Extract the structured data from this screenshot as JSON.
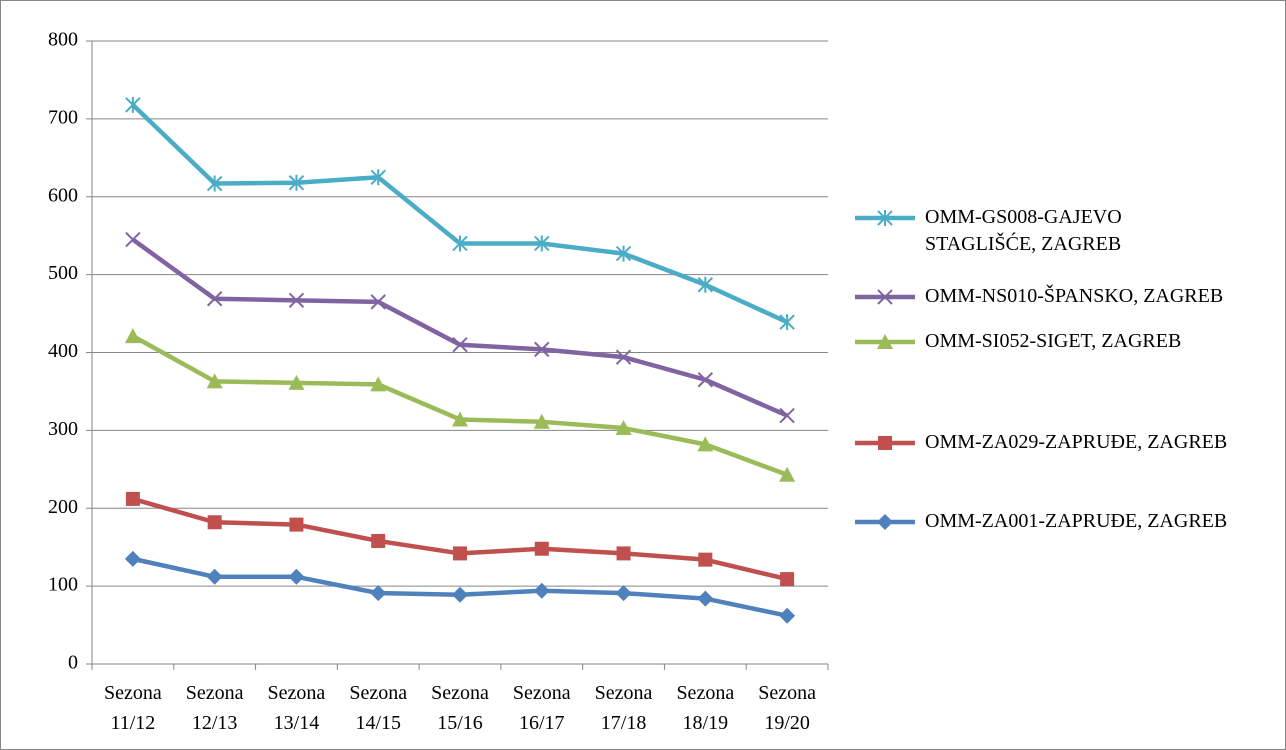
{
  "chart_data": {
    "type": "line",
    "categories": [
      "Sezona 11/12",
      "Sezona 12/13",
      "Sezona 13/14",
      "Sezona 14/15",
      "Sezona 15/16",
      "Sezona 16/17",
      "Sezona 17/18",
      "Sezona 18/19",
      "Sezona 19/20"
    ],
    "series": [
      {
        "name": "OMM-GS008-GAJEVO STAGLIŠĆE, ZAGREB",
        "color": "#4bacc6",
        "marker": "star",
        "values": [
          718,
          617,
          618,
          625,
          540,
          540,
          527,
          487,
          439
        ]
      },
      {
        "name": "OMM-NS010-ŠPANSKO, ZAGREB",
        "color": "#8064a2",
        "marker": "x",
        "values": [
          545,
          469,
          467,
          465,
          410,
          404,
          394,
          365,
          319
        ]
      },
      {
        "name": "OMM-SI052-SIGET, ZAGREB",
        "color": "#9bbb59",
        "marker": "triangle",
        "values": [
          421,
          363,
          361,
          359,
          314,
          311,
          303,
          282,
          243
        ]
      },
      {
        "name": "OMM-ZA029-ZAPRUĐE, ZAGREB",
        "color": "#c0504d",
        "marker": "square",
        "values": [
          212,
          182,
          179,
          158,
          142,
          148,
          142,
          134,
          109
        ]
      },
      {
        "name": "OMM-ZA001-ZAPRUĐE, ZAGREB",
        "color": "#4f81bd",
        "marker": "diamond",
        "values": [
          135,
          112,
          112,
          91,
          89,
          94,
          91,
          84,
          62
        ]
      }
    ],
    "ylim": [
      0,
      800
    ],
    "yticks": [
      0,
      100,
      200,
      300,
      400,
      500,
      600,
      700,
      800
    ],
    "grid": true,
    "legend": "right"
  }
}
